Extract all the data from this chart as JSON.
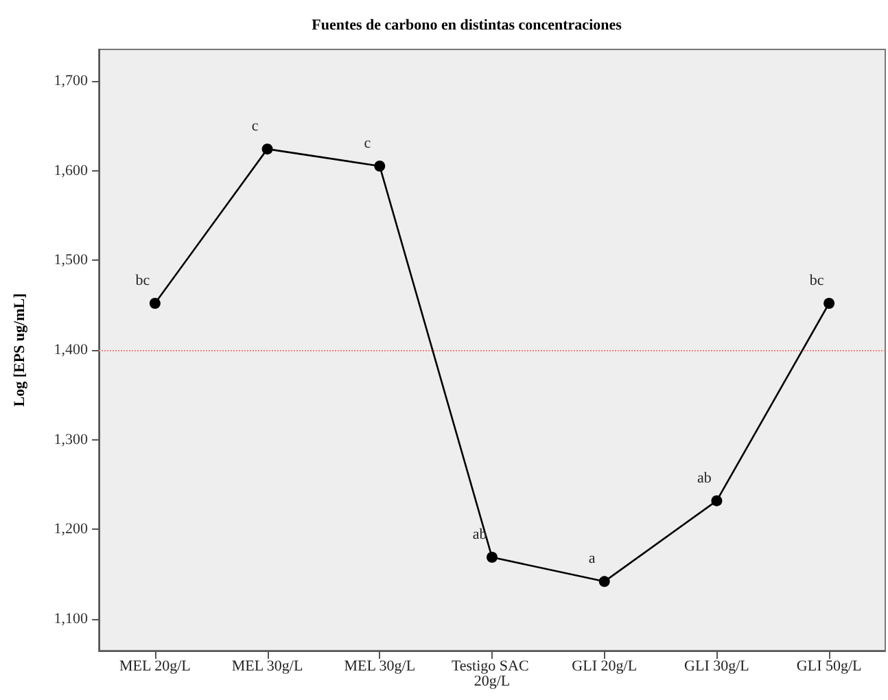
{
  "chart_data": {
    "type": "line",
    "title": "Fuentes de carbono en distintas concentraciones",
    "ylabel": "Log [EPS ug/mL]",
    "categories": [
      "MEL 20g/L",
      "MEL 30g/L",
      "MEL 30g/L",
      "Testigo SAC 20g/L",
      "GLI 20g/L",
      "GLI 30g/L",
      "GLI 50g/L"
    ],
    "series": [
      {
        "color": "#000000",
        "values": [
          1452,
          1624,
          1605,
          1169,
          1142,
          1232,
          1452
        ],
        "value_labels": [
          "bc",
          "c",
          "c",
          "ab",
          "a",
          "ab",
          "bc"
        ]
      }
    ],
    "ylim": [
      1065,
      1735
    ],
    "yticks": [
      {
        "value": 1100,
        "label": "1,100"
      },
      {
        "value": 1200,
        "label": "1,200"
      },
      {
        "value": 1300,
        "label": "1,300"
      },
      {
        "value": 1400,
        "label": "1,400"
      },
      {
        "value": 1500,
        "label": "1,500"
      },
      {
        "value": 1600,
        "label": "1,600"
      },
      {
        "value": 1700,
        "label": "1,700"
      }
    ],
    "ref_lines": [
      {
        "axis": "y",
        "value": 1400,
        "color": "#f08080",
        "line_style": "dotted"
      }
    ],
    "grid": false,
    "marker": "circle",
    "line_style": "solid"
  }
}
